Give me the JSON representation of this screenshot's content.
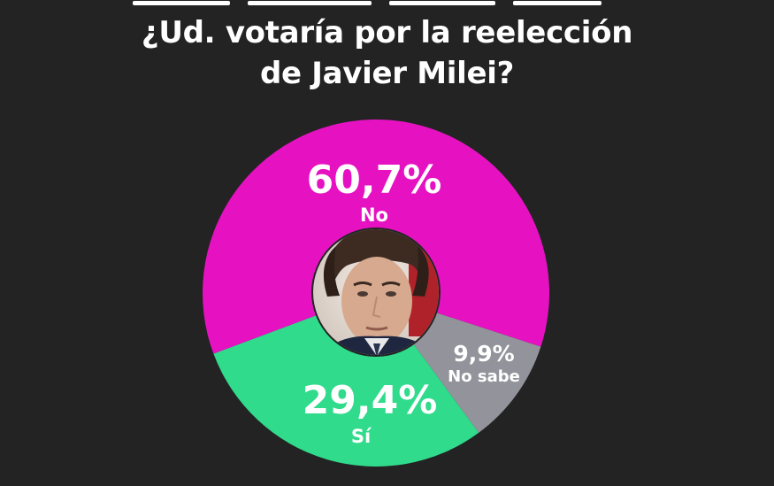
{
  "chart_data": {
    "type": "pie",
    "title_lines": [
      "¿Ud. votaría por la reelección",
      "de Javier Milei?"
    ],
    "slices": [
      {
        "label": "No",
        "value": 60.7,
        "display": "60,7%",
        "color": "#E612C2"
      },
      {
        "label": "No sabe",
        "value": 9.9,
        "display": "9,9%",
        "color": "#93939B"
      },
      {
        "label": "Sí",
        "value": 29.4,
        "display": "29,4%",
        "color": "#30DB8C"
      }
    ]
  },
  "center_photo": {
    "icon": "portrait-photo-icon"
  }
}
